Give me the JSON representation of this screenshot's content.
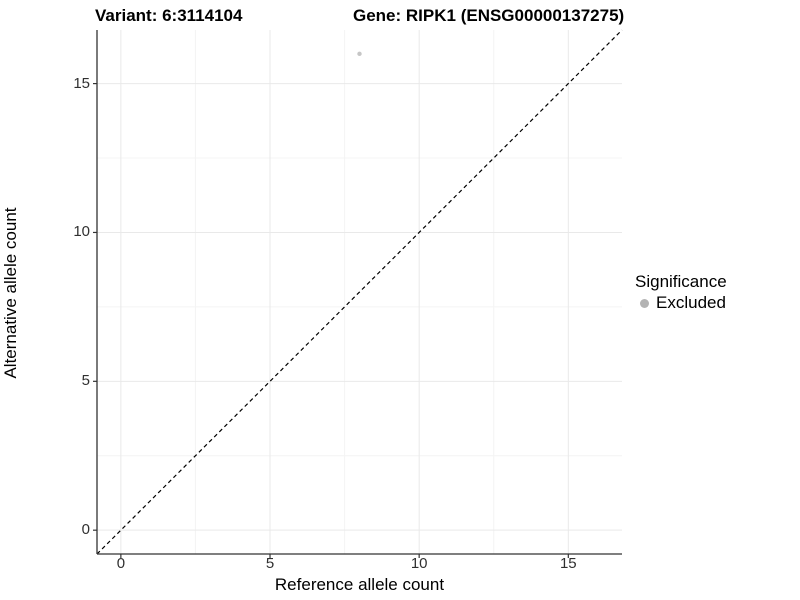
{
  "header": {
    "variant_title": "Variant: 6:3114104",
    "gene_title": "Gene: RIPK1 (ENSG00000137275)"
  },
  "chart_data": {
    "type": "scatter",
    "title": "Variant: 6:3114104    Gene: RIPK1 (ENSG00000137275)",
    "xlabel": "Reference allele count",
    "ylabel": "Alternative allele count",
    "xlim": [
      -0.8,
      16.8
    ],
    "ylim": [
      -0.8,
      16.8
    ],
    "x_ticks": [
      0,
      5,
      10,
      15
    ],
    "y_ticks": [
      0,
      5,
      10,
      15
    ],
    "x_minor_ticks": [
      2.5,
      7.5,
      12.5
    ],
    "y_minor_ticks": [
      2.5,
      7.5,
      12.5
    ],
    "grid": true,
    "series": [
      {
        "name": "Excluded",
        "color": "#c6c6c6",
        "point_radius": 2.2,
        "points": [
          {
            "x": 8,
            "y": 16
          }
        ]
      }
    ],
    "reference_line": {
      "type": "identity",
      "style": "dashed",
      "color": "#000000",
      "from": [
        -0.8,
        -0.8
      ],
      "to": [
        16.8,
        16.8
      ]
    },
    "legend": {
      "title": "Significance",
      "position": "right",
      "items": [
        {
          "label": "Excluded",
          "color": "#b3b3b3"
        }
      ]
    }
  },
  "colors": {
    "background": "#ffffff",
    "grid_major": "#e9e9e9",
    "grid_minor": "#f4f4f4",
    "axis_line": "#333333",
    "tick_mark": "#333333",
    "tick_text": "#303030",
    "title_text": "#000000"
  }
}
